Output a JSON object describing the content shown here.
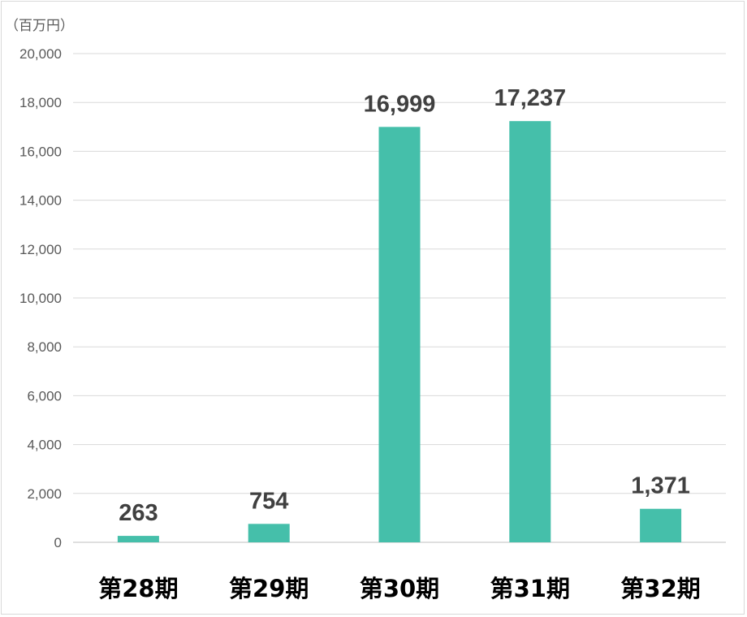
{
  "chart_data": {
    "type": "bar",
    "unit_label": "（百万円）",
    "categories": [
      "第28期",
      "第29期",
      "第30期",
      "第31期",
      "第32期"
    ],
    "values": [
      263,
      754,
      16999,
      17237,
      1371
    ],
    "data_labels": [
      "263",
      "754",
      "16,999",
      "17,237",
      "1,371"
    ],
    "ylim": [
      0,
      20000
    ],
    "yticks": [
      0,
      2000,
      4000,
      6000,
      8000,
      10000,
      12000,
      14000,
      16000,
      18000,
      20000
    ],
    "ytick_labels": [
      "0",
      "2,000",
      "4,000",
      "6,000",
      "8,000",
      "10,000",
      "12,000",
      "14,000",
      "16,000",
      "18,000",
      "20,000"
    ],
    "grid": true,
    "bar_color": "#45bfaa"
  }
}
